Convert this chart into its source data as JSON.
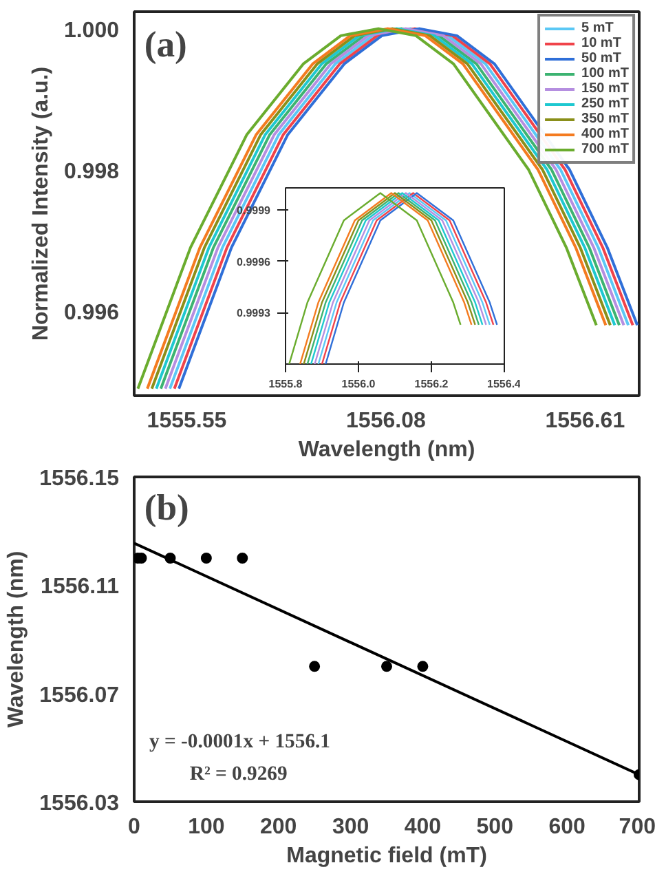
{
  "chart_data": [
    {
      "type": "line",
      "xlabel": "Wavelength (nm)",
      "ylabel": "Normalized Intensity (a.u.)",
      "annotations": [
        "(a)"
      ],
      "xlim": [
        1555.41,
        1556.754
      ],
      "ylim": [
        0.9948,
        1.00024
      ],
      "xticks": [
        1555.55,
        1556.08,
        1556.61
      ],
      "yticks": [
        {
          "value": 0.996,
          "label": "0.996"
        },
        {
          "value": 0.998,
          "label": "0.998"
        },
        {
          "value": 1.0,
          "label": "1.000"
        }
      ],
      "grid": false,
      "legend": "top right",
      "marker": "none",
      "line_style": "solid",
      "series": [
        {
          "name": "5 mT",
          "color": "#5bc8f5",
          "x": [
            1555.505,
            1555.645,
            1555.795,
            1555.945,
            1556.045,
            1556.145,
            1556.245,
            1556.345,
            1556.545,
            1556.645,
            1556.725
          ],
          "values": [
            0.9949,
            0.9969,
            0.9985,
            0.9995,
            0.9999,
            1.0,
            0.9999,
            0.9995,
            0.998,
            0.9969,
            0.9958
          ]
        },
        {
          "name": "10 mT",
          "color": "#f0434a",
          "x": [
            1555.517,
            1555.657,
            1555.807,
            1555.957,
            1556.057,
            1556.157,
            1556.257,
            1556.357,
            1556.557,
            1556.657,
            1556.737
          ],
          "values": [
            0.9949,
            0.9969,
            0.9985,
            0.9995,
            0.9999,
            1.0,
            0.9999,
            0.9995,
            0.998,
            0.9969,
            0.9958
          ]
        },
        {
          "name": "50 mT",
          "color": "#2f6fd8",
          "x": [
            1555.529,
            1555.669,
            1555.819,
            1555.969,
            1556.069,
            1556.169,
            1556.269,
            1556.369,
            1556.569,
            1556.669,
            1556.749
          ],
          "values": [
            0.9949,
            0.9969,
            0.9985,
            0.9995,
            0.9999,
            1.0,
            0.9999,
            0.9995,
            0.998,
            0.9969,
            0.9958
          ]
        },
        {
          "name": "100 mT",
          "color": "#3cb371",
          "x": [
            1555.481,
            1555.621,
            1555.771,
            1555.921,
            1556.021,
            1556.121,
            1556.221,
            1556.321,
            1556.521,
            1556.621,
            1556.701
          ],
          "values": [
            0.9949,
            0.9969,
            0.9985,
            0.9995,
            0.9999,
            1.0,
            0.9999,
            0.9995,
            0.998,
            0.9969,
            0.9958
          ]
        },
        {
          "name": "150 mT",
          "color": "#b58ee0",
          "x": [
            1555.493,
            1555.633,
            1555.783,
            1555.933,
            1556.033,
            1556.133,
            1556.233,
            1556.333,
            1556.533,
            1556.633,
            1556.713
          ],
          "values": [
            0.9949,
            0.9969,
            0.9985,
            0.9995,
            0.9999,
            1.0,
            0.9999,
            0.9995,
            0.998,
            0.9969,
            0.9958
          ]
        },
        {
          "name": "250 mT",
          "color": "#1ec8d0",
          "x": [
            1555.469,
            1555.609,
            1555.759,
            1555.909,
            1556.009,
            1556.109,
            1556.209,
            1556.309,
            1556.509,
            1556.609,
            1556.689
          ],
          "values": [
            0.9949,
            0.9969,
            0.9985,
            0.9995,
            0.9999,
            1.0,
            0.9999,
            0.9995,
            0.998,
            0.9969,
            0.9958
          ]
        },
        {
          "name": "350 mT",
          "color": "#8a8f1a",
          "x": [
            1555.457,
            1555.597,
            1555.747,
            1555.897,
            1555.997,
            1556.097,
            1556.197,
            1556.297,
            1556.497,
            1556.597,
            1556.677
          ],
          "values": [
            0.9949,
            0.9969,
            0.9985,
            0.9995,
            0.9999,
            1.0,
            0.9999,
            0.9995,
            0.998,
            0.9969,
            0.9958
          ]
        },
        {
          "name": "400 mT",
          "color": "#f47b20",
          "x": [
            1555.445,
            1555.585,
            1555.735,
            1555.885,
            1555.985,
            1556.085,
            1556.185,
            1556.285,
            1556.485,
            1556.585,
            1556.665
          ],
          "values": [
            0.9949,
            0.9969,
            0.9985,
            0.9995,
            0.9999,
            1.0,
            0.9999,
            0.9995,
            0.998,
            0.9969,
            0.9958
          ]
        },
        {
          "name": "700 mT",
          "color": "#6aac2e",
          "x": [
            1555.42,
            1555.56,
            1555.71,
            1555.86,
            1555.96,
            1556.06,
            1556.16,
            1556.26,
            1556.46,
            1556.56,
            1556.64
          ],
          "values": [
            0.9949,
            0.9969,
            0.9985,
            0.9995,
            0.9999,
            1.0,
            0.9999,
            0.9995,
            0.998,
            0.9969,
            0.9958
          ]
        }
      ]
    },
    {
      "type": "line",
      "xlim": [
        1555.8,
        1556.4
      ],
      "ylim": [
        0.999,
        1.00003
      ],
      "xticks": [
        1555.8,
        {
          "value": 1556.0,
          "label": "1556.0"
        },
        1556.2,
        1556.4
      ],
      "yticks": [
        0.9993,
        0.9996,
        0.9999
      ],
      "grid": false,
      "marker": "none",
      "line_style": "solid",
      "series": [
        {
          "color": "#5bc8f5",
          "x": [
            1555.89,
            1555.94,
            1556.04,
            1556.14,
            1556.24,
            1556.34,
            1556.36
          ],
          "values": [
            0.999,
            0.99936,
            0.99984,
            1.0,
            0.99984,
            0.99936,
            0.99923
          ]
        },
        {
          "color": "#f0434a",
          "x": [
            1555.9,
            1555.95,
            1556.05,
            1556.15,
            1556.25,
            1556.35,
            1556.37
          ],
          "values": [
            0.999,
            0.99936,
            0.99984,
            1.0,
            0.99984,
            0.99936,
            0.99923
          ]
        },
        {
          "color": "#2f6fd8",
          "x": [
            1555.91,
            1555.96,
            1556.06,
            1556.16,
            1556.26,
            1556.36,
            1556.38
          ],
          "values": [
            0.999,
            0.99936,
            0.99984,
            1.0,
            0.99984,
            0.99936,
            0.99923
          ]
        },
        {
          "color": "#3cb371",
          "x": [
            1555.86,
            1555.91,
            1556.01,
            1556.11,
            1556.21,
            1556.31,
            1556.33
          ],
          "values": [
            0.999,
            0.99936,
            0.99984,
            1.0,
            0.99984,
            0.99936,
            0.99923
          ]
        },
        {
          "color": "#b58ee0",
          "x": [
            1555.88,
            1555.93,
            1556.03,
            1556.13,
            1556.23,
            1556.33,
            1556.35
          ],
          "values": [
            0.999,
            0.99936,
            0.99984,
            1.0,
            0.99984,
            0.99936,
            0.99923
          ]
        },
        {
          "color": "#1ec8d0",
          "x": [
            1555.87,
            1555.92,
            1556.02,
            1556.12,
            1556.22,
            1556.32,
            1556.34
          ],
          "values": [
            0.999,
            0.99936,
            0.99984,
            1.0,
            0.99984,
            0.99936,
            0.99923
          ]
        },
        {
          "color": "#8a8f1a",
          "x": [
            1555.85,
            1555.9,
            1556.0,
            1556.1,
            1556.2,
            1556.3,
            1556.32
          ],
          "values": [
            0.999,
            0.99936,
            0.99984,
            1.0,
            0.99984,
            0.99936,
            0.99923
          ]
        },
        {
          "color": "#f47b20",
          "x": [
            1555.84,
            1555.89,
            1555.99,
            1556.09,
            1556.19,
            1556.29,
            1556.31
          ],
          "values": [
            0.999,
            0.99936,
            0.99984,
            1.0,
            0.99984,
            0.99936,
            0.99923
          ]
        },
        {
          "color": "#6aac2e",
          "x": [
            1555.81,
            1555.86,
            1555.96,
            1556.06,
            1556.16,
            1556.26,
            1556.28
          ],
          "values": [
            0.999,
            0.99936,
            0.99984,
            1.0,
            0.99984,
            0.99936,
            0.99923
          ]
        }
      ]
    },
    {
      "type": "scatter",
      "xlabel": "Magnetic field (mT)",
      "ylabel": "Wavelength (nm)",
      "annotations": [
        "(b)",
        "y = -0.0001x + 1556.1",
        "R² = 0.9269"
      ],
      "xlim": [
        0,
        700
      ],
      "ylim": [
        1556.03,
        1556.15
      ],
      "xticks": [
        0,
        100,
        200,
        300,
        400,
        500,
        600,
        700
      ],
      "yticks": [
        1556.03,
        1556.07,
        1556.11,
        1556.15
      ],
      "grid": false,
      "series": [
        {
          "color": "#000000",
          "marker": "circle",
          "x": [
            5,
            10,
            50,
            100,
            150,
            250,
            350,
            400,
            700
          ],
          "values": [
            1556.12,
            1556.12,
            1556.12,
            1556.12,
            1556.12,
            1556.08,
            1556.08,
            1556.08,
            1556.04
          ]
        },
        {
          "type": "line",
          "color": "#000000",
          "x": [
            0,
            700
          ],
          "values": [
            1556.1255,
            1556.04
          ]
        }
      ]
    }
  ]
}
